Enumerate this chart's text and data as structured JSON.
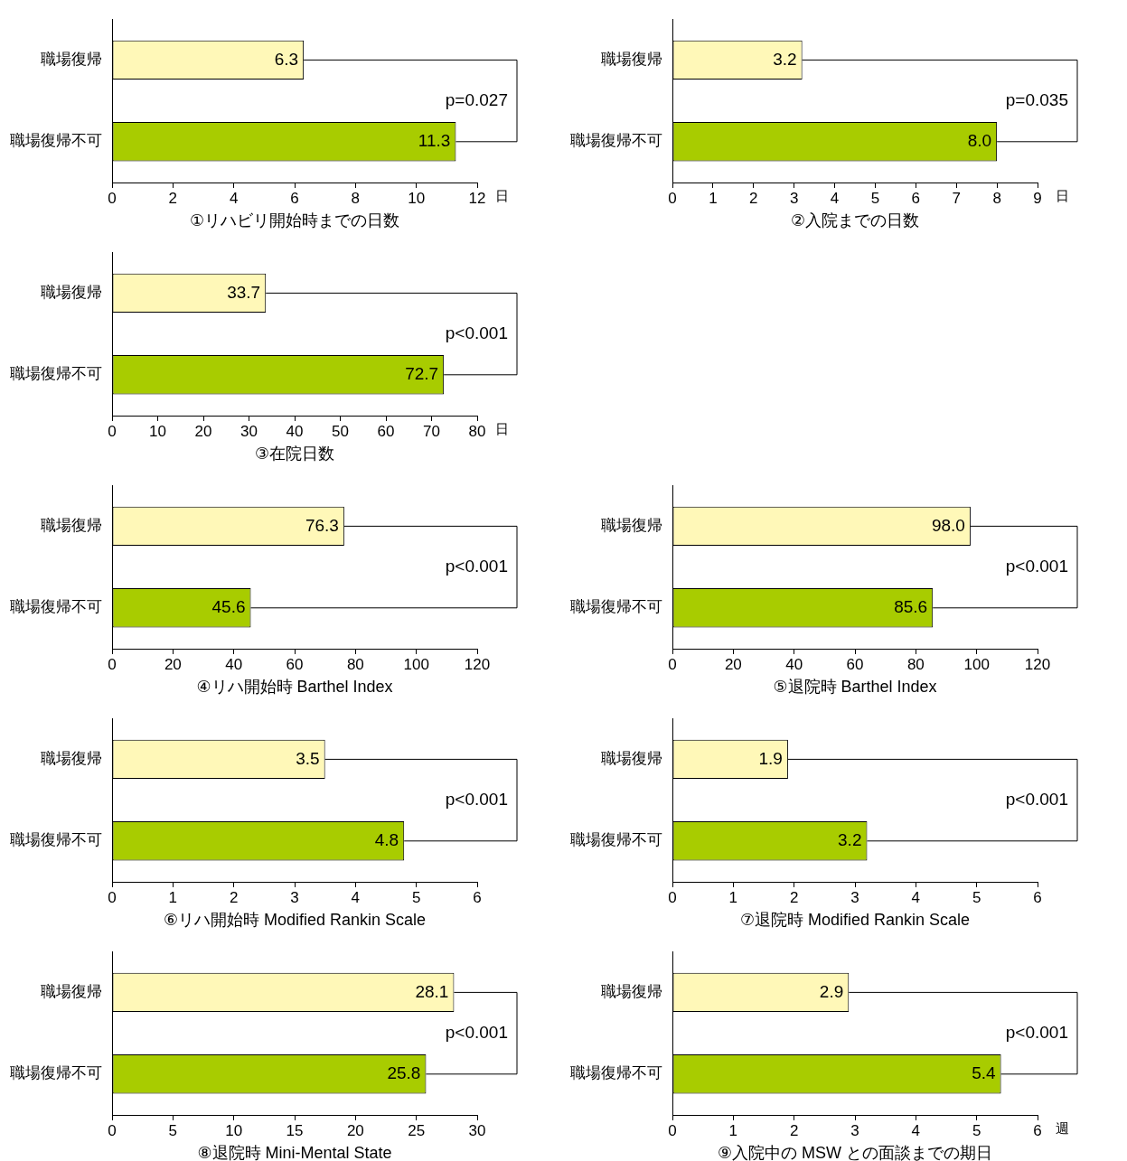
{
  "chart_data": [
    {
      "type": "bar",
      "orientation": "horizontal",
      "categories": [
        "職場復帰",
        "職場復帰不可"
      ],
      "values": [
        6.3,
        11.3
      ],
      "colors": [
        "#fff8b8",
        "#a8cc00"
      ],
      "xlabel": "①リハビリ開始時までの日数",
      "xlim": [
        0,
        12
      ],
      "xticks": [
        0,
        2,
        4,
        6,
        8,
        10,
        12
      ],
      "data_labels": true,
      "annotations": [
        "p=0.027",
        "日"
      ]
    },
    {
      "type": "bar",
      "orientation": "horizontal",
      "categories": [
        "職場復帰",
        "職場復帰不可"
      ],
      "values": [
        3.2,
        8.0
      ],
      "value_labels": [
        "3.2",
        "8.0"
      ],
      "colors": [
        "#fff8b8",
        "#a8cc00"
      ],
      "xlabel": "②入院までの日数",
      "xlim": [
        0,
        9
      ],
      "xticks": [
        0,
        1,
        2,
        3,
        4,
        5,
        6,
        7,
        8,
        9
      ],
      "annotations": [
        "p=0.035",
        "日"
      ]
    },
    {
      "type": "bar",
      "orientation": "horizontal",
      "categories": [
        "職場復帰",
        "職場復帰不可"
      ],
      "values": [
        33.7,
        72.7
      ],
      "colors": [
        "#fff8b8",
        "#a8cc00"
      ],
      "xlabel": "③在院日数",
      "xlim": [
        0,
        80
      ],
      "xticks": [
        0,
        10,
        20,
        30,
        40,
        50,
        60,
        70,
        80
      ],
      "data_labels": true,
      "annotations": [
        "p<0.001",
        "日"
      ]
    },
    {
      "type": "bar",
      "orientation": "horizontal",
      "categories": [
        "職場復帰",
        "職場復帰不可"
      ],
      "values": [
        76.3,
        45.6
      ],
      "colors": [
        "#fff8b8",
        "#a8cc00"
      ],
      "xlabel": "④リハ開始時 Barthel Index",
      "xlim": [
        0,
        120
      ],
      "xticks": [
        0,
        20,
        40,
        60,
        80,
        100,
        120
      ],
      "data_labels": true,
      "annotations": [
        "p<0.001"
      ]
    },
    {
      "type": "bar",
      "orientation": "horizontal",
      "categories": [
        "職場復帰",
        "職場復帰不可"
      ],
      "values": [
        98.0,
        85.6
      ],
      "value_labels": [
        "98.0",
        "85.6"
      ],
      "colors": [
        "#fff8b8",
        "#a8cc00"
      ],
      "xlabel": "⑤退院時 Barthel Index",
      "xlim": [
        0,
        120
      ],
      "xticks": [
        0,
        20,
        40,
        60,
        80,
        100,
        120
      ],
      "annotations": [
        "p<0.001"
      ]
    },
    {
      "type": "bar",
      "orientation": "horizontal",
      "categories": [
        "職場復帰",
        "職場復帰不可"
      ],
      "values": [
        3.5,
        4.8
      ],
      "colors": [
        "#fff8b8",
        "#a8cc00"
      ],
      "xlabel": "⑥リハ開始時 Modified Rankin Scale",
      "xlim": [
        0,
        6
      ],
      "xticks": [
        0,
        1,
        2,
        3,
        4,
        5,
        6
      ],
      "data_labels": true,
      "annotations": [
        "p<0.001"
      ]
    },
    {
      "type": "bar",
      "orientation": "horizontal",
      "categories": [
        "職場復帰",
        "職場復帰不可"
      ],
      "values": [
        1.9,
        3.2
      ],
      "colors": [
        "#fff8b8",
        "#a8cc00"
      ],
      "xlabel": "⑦退院時 Modified Rankin Scale",
      "xlim": [
        0,
        6
      ],
      "xticks": [
        0,
        1,
        2,
        3,
        4,
        5,
        6
      ],
      "data_labels": true,
      "annotations": [
        "p<0.001"
      ]
    },
    {
      "type": "bar",
      "orientation": "horizontal",
      "categories": [
        "職場復帰",
        "職場復帰不可"
      ],
      "values": [
        28.1,
        25.8
      ],
      "colors": [
        "#fff8b8",
        "#a8cc00"
      ],
      "xlabel": "⑧退院時 Mini-Mental State",
      "xlim": [
        0,
        30
      ],
      "xticks": [
        0,
        5,
        10,
        15,
        20,
        25,
        30
      ],
      "data_labels": true,
      "annotations": [
        "p<0.001"
      ]
    },
    {
      "type": "bar",
      "orientation": "horizontal",
      "categories": [
        "職場復帰",
        "職場復帰不可"
      ],
      "values": [
        2.9,
        5.4
      ],
      "colors": [
        "#fff8b8",
        "#a8cc00"
      ],
      "xlabel": "⑨入院中の MSW との面談までの期日",
      "xlim": [
        0,
        6
      ],
      "xticks": [
        0,
        1,
        2,
        3,
        4,
        5,
        6
      ],
      "data_labels": true,
      "annotations": [
        "p<0.001",
        "週"
      ]
    }
  ]
}
